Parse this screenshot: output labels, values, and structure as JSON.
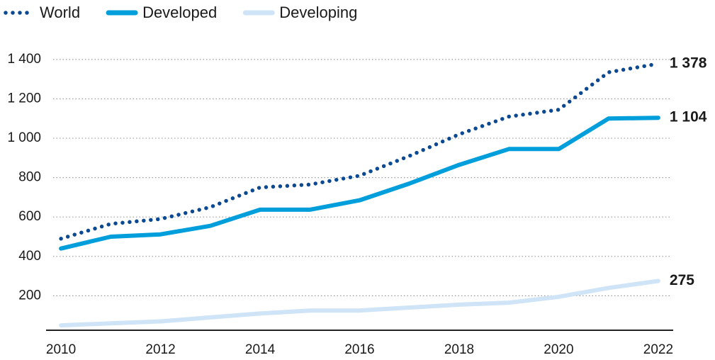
{
  "chart_data": {
    "type": "line",
    "x": [
      2010,
      2011,
      2012,
      2013,
      2014,
      2015,
      2016,
      2017,
      2018,
      2019,
      2020,
      2021,
      2022
    ],
    "series": [
      {
        "name": "World",
        "color": "#0b4a92",
        "style": "dotted",
        "values": [
          490,
          565,
          590,
          650,
          750,
          765,
          810,
          910,
          1020,
          1110,
          1145,
          1335,
          1378
        ],
        "value_labels": [
          null,
          null,
          null,
          null,
          null,
          null,
          null,
          null,
          null,
          null,
          null,
          null,
          "1 378"
        ]
      },
      {
        "name": "Developed",
        "color": "#009edb",
        "style": "solid",
        "values": [
          440,
          500,
          512,
          555,
          637,
          637,
          685,
          770,
          865,
          945,
          945,
          1100,
          1104
        ],
        "value_labels": [
          null,
          null,
          null,
          null,
          null,
          null,
          null,
          null,
          null,
          null,
          null,
          null,
          "1 104"
        ]
      },
      {
        "name": "Developing",
        "color": "#d0e4f7",
        "style": "solid",
        "values": [
          50,
          60,
          70,
          90,
          110,
          125,
          125,
          140,
          155,
          165,
          195,
          240,
          275
        ],
        "value_labels": [
          null,
          null,
          null,
          null,
          null,
          null,
          null,
          null,
          null,
          null,
          null,
          null,
          "275"
        ]
      }
    ],
    "xlim": [
      2009.7,
      2022.3
    ],
    "xticks": [
      2010,
      2012,
      2014,
      2016,
      2018,
      2020,
      2022
    ],
    "ylim": [
      25,
      1450
    ],
    "yticks": [
      200,
      {
        "value": 400,
        "label": "400"
      },
      600,
      800,
      {
        "value": 1000,
        "label": "1 000"
      },
      {
        "value": 1200,
        "label": "1 200"
      },
      {
        "value": 1400,
        "label": "1 400"
      }
    ],
    "grid": true,
    "legend": "top-left"
  }
}
